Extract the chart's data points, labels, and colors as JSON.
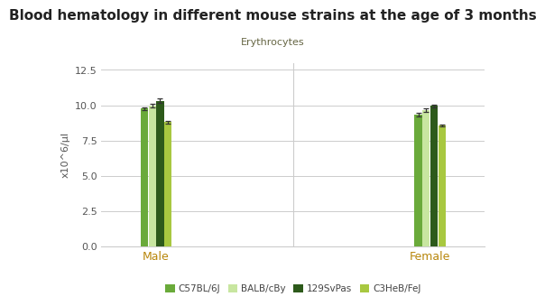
{
  "title": "Blood hematology in different mouse strains at the age of 3 months",
  "subtitle": "Erythrocytes",
  "ylabel": "x10^6/μl",
  "groups": [
    "Male",
    "Female"
  ],
  "strains": [
    "C57BL/6J",
    "BALB/cBy",
    "129SvPas",
    "C3HeB/FeJ"
  ],
  "colors": [
    "#6aaa3a",
    "#c8e6a0",
    "#2d5a1b",
    "#a8c840"
  ],
  "values": {
    "Male": [
      9.75,
      9.95,
      10.3,
      8.8
    ],
    "Female": [
      9.35,
      9.65,
      9.95,
      8.55
    ]
  },
  "errors": {
    "Male": [
      0.1,
      0.12,
      0.15,
      0.09
    ],
    "Female": [
      0.13,
      0.12,
      0.09,
      0.07
    ]
  },
  "ylim": [
    0,
    13.0
  ],
  "yticks": [
    0,
    2.5,
    5.0,
    7.5,
    10.0,
    12.5
  ],
  "bar_width": 0.055,
  "group_centers": [
    1,
    3
  ],
  "background_color": "#ffffff",
  "title_fontsize": 11,
  "subtitle_fontsize": 8,
  "subtitle_color": "#666644",
  "tick_label_color": "#555555",
  "axis_label_color": "#555555",
  "legend_label_color": "#444444",
  "group_label_color": "#b8860b"
}
